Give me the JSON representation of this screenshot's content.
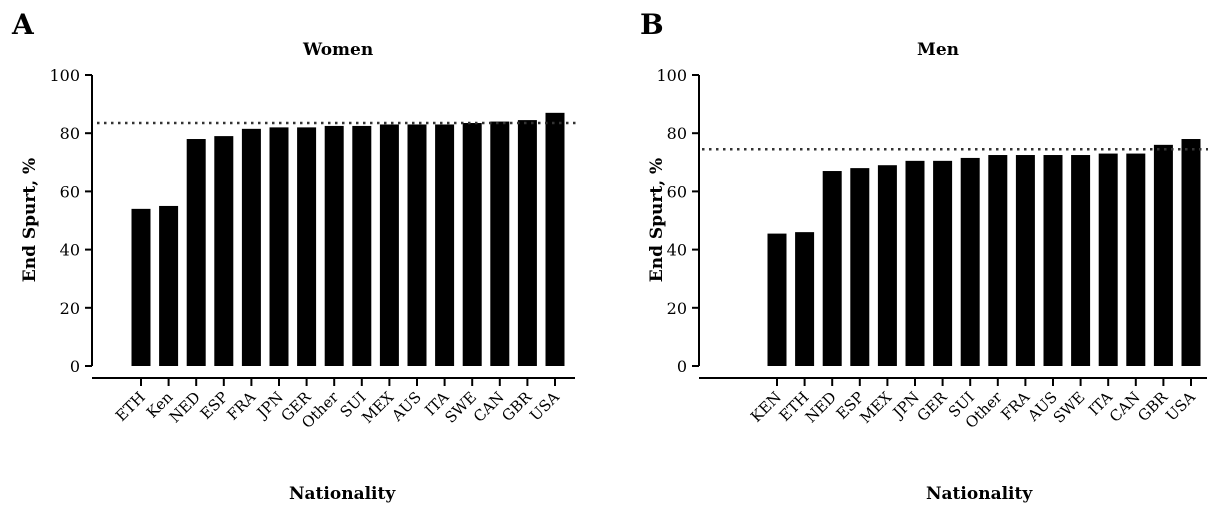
{
  "panels": [
    {
      "letter": "A",
      "chart_data": {
        "type": "bar",
        "title": "Women",
        "xlabel": "Nationality",
        "ylabel": "End Spurt, %",
        "categories": [
          "ETH",
          "Ken",
          "NED",
          "ESP",
          "FRA",
          "JPN",
          "GER",
          "Other",
          "SUI",
          "MEX",
          "AUS",
          "ITA",
          "SWE",
          "CAN",
          "GBR",
          "USA"
        ],
        "values": [
          54,
          55,
          78,
          79,
          81.5,
          82,
          82,
          82.5,
          82.5,
          83,
          83,
          83,
          83.5,
          84,
          84.5,
          87
        ],
        "ylim": [
          0,
          100
        ],
        "yticks": [
          0,
          20,
          40,
          60,
          80,
          100
        ],
        "reference_line": 83.5,
        "grid": false,
        "bar_color": "#000000"
      }
    },
    {
      "letter": "B",
      "chart_data": {
        "type": "bar",
        "title": "Men",
        "xlabel": "Nationality",
        "ylabel": "End Spurt, %",
        "categories": [
          "KEN",
          "ETH",
          "NED",
          "ESP",
          "MEX",
          "JPN",
          "GER",
          "SUI",
          "Other",
          "FRA",
          "AUS",
          "SWE",
          "ITA",
          "CAN",
          "GBR",
          "USA"
        ],
        "values": [
          45.5,
          46,
          67,
          68,
          69,
          70.5,
          70.5,
          71.5,
          72.5,
          72.5,
          72.5,
          72.5,
          73,
          73,
          76,
          78
        ],
        "ylim": [
          0,
          100
        ],
        "yticks": [
          0,
          20,
          40,
          60,
          80,
          100
        ],
        "reference_line": 74.5,
        "grid": false,
        "bar_color": "#000000"
      }
    }
  ]
}
